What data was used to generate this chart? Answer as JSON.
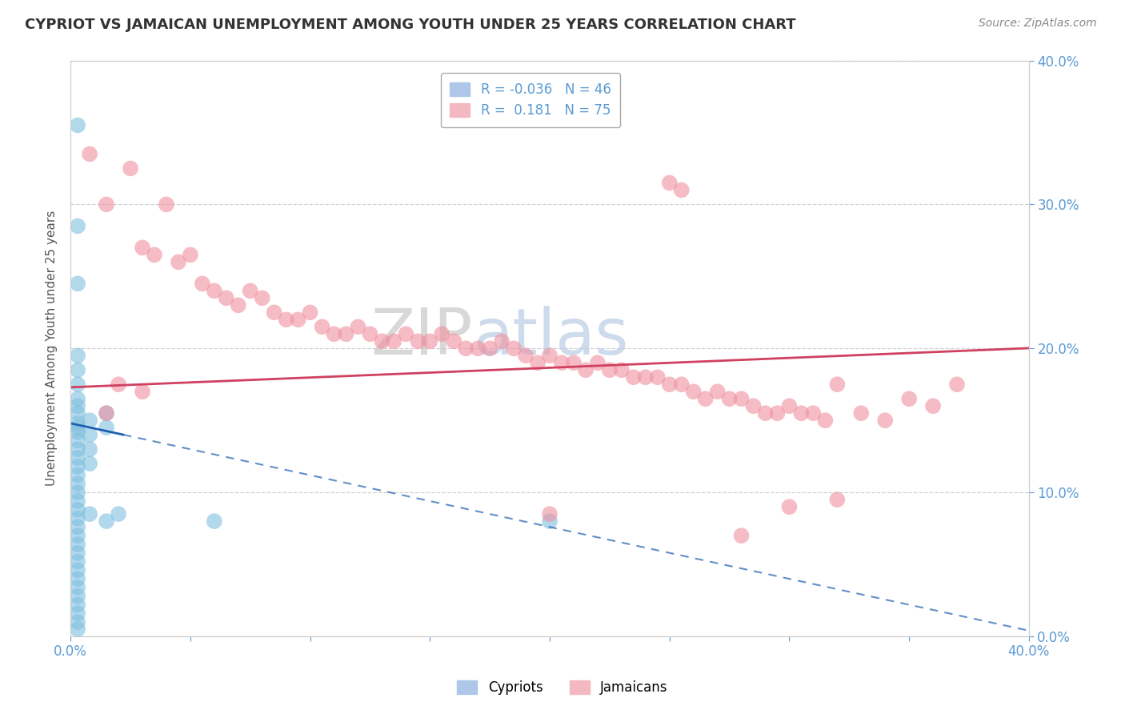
{
  "title": "CYPRIOT VS JAMAICAN UNEMPLOYMENT AMONG YOUTH UNDER 25 YEARS CORRELATION CHART",
  "source_text": "Source: ZipAtlas.com",
  "ylabel": "Unemployment Among Youth under 25 years",
  "xlim": [
    0.0,
    0.4
  ],
  "ylim": [
    0.0,
    0.4
  ],
  "xticks": [
    0.0,
    0.05,
    0.1,
    0.15,
    0.2,
    0.25,
    0.3,
    0.35,
    0.4
  ],
  "yticks": [
    0.0,
    0.1,
    0.2,
    0.3,
    0.4
  ],
  "ytick_labels_right": [
    "0.0%",
    "10.0%",
    "20.0%",
    "30.0%",
    "40.0%"
  ],
  "background_color": "#ffffff",
  "grid_color": "#cccccc",
  "watermark_zip": "ZIP",
  "watermark_atlas": "atlas",
  "cypriot_color": "#7fbfdf",
  "jamaican_color": "#f090a0",
  "cypriot_line_color": "#2060b0",
  "jamaican_line_color": "#d04060",
  "cypriot_points": [
    [
      0.003,
      0.355
    ],
    [
      0.003,
      0.285
    ],
    [
      0.003,
      0.245
    ],
    [
      0.003,
      0.195
    ],
    [
      0.003,
      0.185
    ],
    [
      0.003,
      0.175
    ],
    [
      0.003,
      0.165
    ],
    [
      0.003,
      0.155
    ],
    [
      0.003,
      0.148
    ],
    [
      0.003,
      0.142
    ],
    [
      0.003,
      0.136
    ],
    [
      0.003,
      0.13
    ],
    [
      0.003,
      0.124
    ],
    [
      0.003,
      0.118
    ],
    [
      0.003,
      0.112
    ],
    [
      0.003,
      0.106
    ],
    [
      0.003,
      0.1
    ],
    [
      0.003,
      0.094
    ],
    [
      0.003,
      0.088
    ],
    [
      0.003,
      0.082
    ],
    [
      0.003,
      0.076
    ],
    [
      0.003,
      0.07
    ],
    [
      0.003,
      0.064
    ],
    [
      0.003,
      0.058
    ],
    [
      0.003,
      0.052
    ],
    [
      0.003,
      0.046
    ],
    [
      0.003,
      0.04
    ],
    [
      0.003,
      0.034
    ],
    [
      0.003,
      0.028
    ],
    [
      0.003,
      0.022
    ],
    [
      0.003,
      0.016
    ],
    [
      0.003,
      0.01
    ],
    [
      0.003,
      0.005
    ],
    [
      0.008,
      0.15
    ],
    [
      0.008,
      0.14
    ],
    [
      0.008,
      0.13
    ],
    [
      0.008,
      0.12
    ],
    [
      0.008,
      0.085
    ],
    [
      0.015,
      0.155
    ],
    [
      0.015,
      0.145
    ],
    [
      0.015,
      0.08
    ],
    [
      0.02,
      0.085
    ],
    [
      0.06,
      0.08
    ],
    [
      0.2,
      0.08
    ],
    [
      0.003,
      0.16
    ],
    [
      0.003,
      0.145
    ]
  ],
  "jamaican_points": [
    [
      0.008,
      0.335
    ],
    [
      0.015,
      0.3
    ],
    [
      0.025,
      0.325
    ],
    [
      0.03,
      0.27
    ],
    [
      0.035,
      0.265
    ],
    [
      0.04,
      0.3
    ],
    [
      0.045,
      0.26
    ],
    [
      0.05,
      0.265
    ],
    [
      0.055,
      0.245
    ],
    [
      0.06,
      0.24
    ],
    [
      0.065,
      0.235
    ],
    [
      0.07,
      0.23
    ],
    [
      0.075,
      0.24
    ],
    [
      0.08,
      0.235
    ],
    [
      0.085,
      0.225
    ],
    [
      0.09,
      0.22
    ],
    [
      0.095,
      0.22
    ],
    [
      0.1,
      0.225
    ],
    [
      0.105,
      0.215
    ],
    [
      0.11,
      0.21
    ],
    [
      0.115,
      0.21
    ],
    [
      0.12,
      0.215
    ],
    [
      0.125,
      0.21
    ],
    [
      0.13,
      0.205
    ],
    [
      0.135,
      0.205
    ],
    [
      0.14,
      0.21
    ],
    [
      0.145,
      0.205
    ],
    [
      0.15,
      0.205
    ],
    [
      0.155,
      0.21
    ],
    [
      0.16,
      0.205
    ],
    [
      0.165,
      0.2
    ],
    [
      0.17,
      0.2
    ],
    [
      0.175,
      0.2
    ],
    [
      0.18,
      0.205
    ],
    [
      0.185,
      0.2
    ],
    [
      0.19,
      0.195
    ],
    [
      0.195,
      0.19
    ],
    [
      0.2,
      0.195
    ],
    [
      0.205,
      0.19
    ],
    [
      0.21,
      0.19
    ],
    [
      0.215,
      0.185
    ],
    [
      0.22,
      0.19
    ],
    [
      0.225,
      0.185
    ],
    [
      0.23,
      0.185
    ],
    [
      0.235,
      0.18
    ],
    [
      0.24,
      0.18
    ],
    [
      0.245,
      0.18
    ],
    [
      0.25,
      0.175
    ],
    [
      0.25,
      0.315
    ],
    [
      0.255,
      0.175
    ],
    [
      0.255,
      0.31
    ],
    [
      0.26,
      0.17
    ],
    [
      0.265,
      0.165
    ],
    [
      0.27,
      0.17
    ],
    [
      0.275,
      0.165
    ],
    [
      0.28,
      0.165
    ],
    [
      0.285,
      0.16
    ],
    [
      0.29,
      0.155
    ],
    [
      0.295,
      0.155
    ],
    [
      0.3,
      0.16
    ],
    [
      0.305,
      0.155
    ],
    [
      0.31,
      0.155
    ],
    [
      0.315,
      0.15
    ],
    [
      0.32,
      0.175
    ],
    [
      0.33,
      0.155
    ],
    [
      0.34,
      0.15
    ],
    [
      0.35,
      0.165
    ],
    [
      0.36,
      0.16
    ],
    [
      0.37,
      0.175
    ],
    [
      0.015,
      0.155
    ],
    [
      0.02,
      0.175
    ],
    [
      0.03,
      0.17
    ],
    [
      0.2,
      0.085
    ],
    [
      0.3,
      0.09
    ],
    [
      0.32,
      0.095
    ],
    [
      0.28,
      0.07
    ]
  ]
}
